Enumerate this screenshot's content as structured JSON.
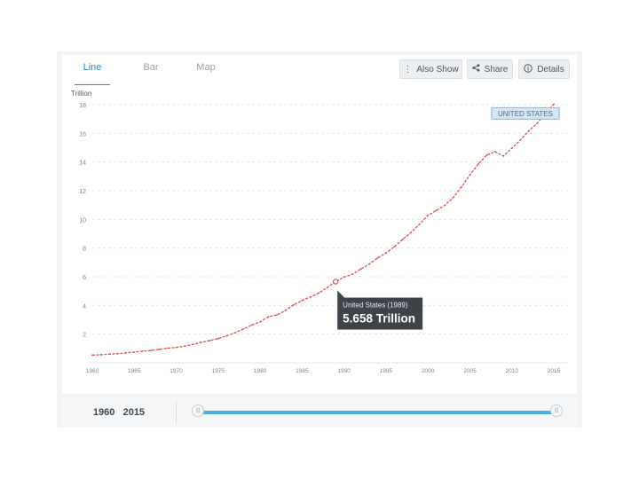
{
  "tabs": [
    {
      "label": "Line",
      "active": true
    },
    {
      "label": "Bar",
      "active": false
    },
    {
      "label": "Map",
      "active": false
    }
  ],
  "toolbar": {
    "also_show": {
      "label": "Also Show",
      "icon": "vertical-dots-icon"
    },
    "share": {
      "label": "Share",
      "icon": "share-icon"
    },
    "details": {
      "label": "Details",
      "icon": "info-circle-icon"
    }
  },
  "colors": {
    "accent": "#1f8fcf",
    "line": "#d9534f",
    "slider": "#4ab0df"
  },
  "chart_data": {
    "type": "line",
    "ylabel": "Trillion",
    "xlim": [
      1960,
      2015
    ],
    "ylim": [
      0,
      18
    ],
    "yticks": [
      "2",
      "4",
      "6",
      "8",
      "10",
      "12",
      "14",
      "16",
      "18"
    ],
    "xticks": [
      "1960",
      "1965",
      "1970",
      "1975",
      "1980",
      "1985",
      "1990",
      "1995",
      "2000",
      "2005",
      "2010",
      "2015"
    ],
    "grid": true,
    "series": [
      {
        "name": "UNITED STATES",
        "x": [
          1960,
          1961,
          1962,
          1963,
          1964,
          1965,
          1966,
          1967,
          1968,
          1969,
          1970,
          1971,
          1972,
          1973,
          1974,
          1975,
          1976,
          1977,
          1978,
          1979,
          1980,
          1981,
          1982,
          1983,
          1984,
          1985,
          1986,
          1987,
          1988,
          1989,
          1990,
          1991,
          1992,
          1993,
          1994,
          1995,
          1996,
          1997,
          1998,
          1999,
          2000,
          2001,
          2002,
          2003,
          2004,
          2005,
          2006,
          2007,
          2008,
          2009,
          2010,
          2011,
          2012,
          2013,
          2014,
          2015
        ],
        "values": [
          0.54,
          0.56,
          0.6,
          0.64,
          0.69,
          0.74,
          0.81,
          0.86,
          0.94,
          1.02,
          1.07,
          1.16,
          1.28,
          1.43,
          1.55,
          1.69,
          1.88,
          2.09,
          2.36,
          2.63,
          2.86,
          3.21,
          3.34,
          3.64,
          4.04,
          4.35,
          4.59,
          4.87,
          5.25,
          5.658,
          5.98,
          6.17,
          6.54,
          6.88,
          7.31,
          7.66,
          8.1,
          8.61,
          9.09,
          9.66,
          10.28,
          10.62,
          10.98,
          11.51,
          12.27,
          13.09,
          13.86,
          14.48,
          14.72,
          14.42,
          14.96,
          15.52,
          16.16,
          16.69,
          17.39,
          18.04
        ]
      }
    ],
    "series_label": "UNITED STATES",
    "tooltip": {
      "title": "United States (1989)",
      "value": "5.658 Trillion",
      "x": 1989,
      "y": 5.658
    }
  },
  "slider": {
    "start": "1960",
    "end": "2015",
    "handle_glyph": "|||"
  }
}
